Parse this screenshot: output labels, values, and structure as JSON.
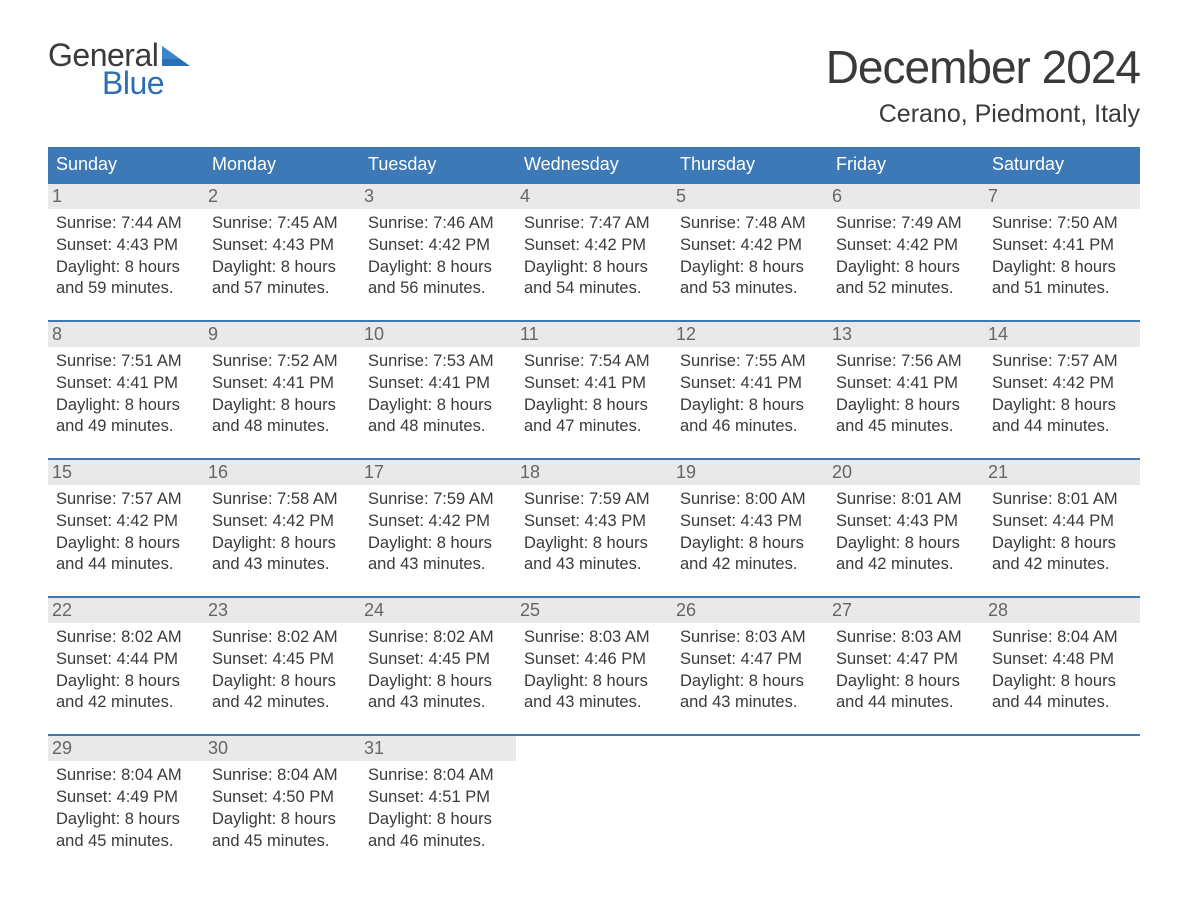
{
  "logo": {
    "text_top": "General",
    "text_bottom": "Blue",
    "color_top": "#3a3a3a",
    "color_bottom": "#2d6fb5"
  },
  "title": "December 2024",
  "location": "Cerano, Piedmont, Italy",
  "colors": {
    "header_bg": "#3c79b6",
    "header_text": "#ffffff",
    "daynum_bg": "#e9e9e9",
    "daynum_text": "#666666",
    "body_text": "#3a3a3a",
    "week_border": "#3c79b6",
    "background": "#ffffff"
  },
  "typography": {
    "title_fontsize": 46,
    "location_fontsize": 25,
    "weekday_fontsize": 18,
    "daynum_fontsize": 18,
    "body_fontsize": 16.5,
    "font_family": "Arial, Helvetica, sans-serif"
  },
  "weekdays": [
    "Sunday",
    "Monday",
    "Tuesday",
    "Wednesday",
    "Thursday",
    "Friday",
    "Saturday"
  ],
  "weeks": [
    [
      {
        "n": "1",
        "sunrise": "Sunrise: 7:44 AM",
        "sunset": "Sunset: 4:43 PM",
        "d1": "Daylight: 8 hours",
        "d2": "and 59 minutes."
      },
      {
        "n": "2",
        "sunrise": "Sunrise: 7:45 AM",
        "sunset": "Sunset: 4:43 PM",
        "d1": "Daylight: 8 hours",
        "d2": "and 57 minutes."
      },
      {
        "n": "3",
        "sunrise": "Sunrise: 7:46 AM",
        "sunset": "Sunset: 4:42 PM",
        "d1": "Daylight: 8 hours",
        "d2": "and 56 minutes."
      },
      {
        "n": "4",
        "sunrise": "Sunrise: 7:47 AM",
        "sunset": "Sunset: 4:42 PM",
        "d1": "Daylight: 8 hours",
        "d2": "and 54 minutes."
      },
      {
        "n": "5",
        "sunrise": "Sunrise: 7:48 AM",
        "sunset": "Sunset: 4:42 PM",
        "d1": "Daylight: 8 hours",
        "d2": "and 53 minutes."
      },
      {
        "n": "6",
        "sunrise": "Sunrise: 7:49 AM",
        "sunset": "Sunset: 4:42 PM",
        "d1": "Daylight: 8 hours",
        "d2": "and 52 minutes."
      },
      {
        "n": "7",
        "sunrise": "Sunrise: 7:50 AM",
        "sunset": "Sunset: 4:41 PM",
        "d1": "Daylight: 8 hours",
        "d2": "and 51 minutes."
      }
    ],
    [
      {
        "n": "8",
        "sunrise": "Sunrise: 7:51 AM",
        "sunset": "Sunset: 4:41 PM",
        "d1": "Daylight: 8 hours",
        "d2": "and 49 minutes."
      },
      {
        "n": "9",
        "sunrise": "Sunrise: 7:52 AM",
        "sunset": "Sunset: 4:41 PM",
        "d1": "Daylight: 8 hours",
        "d2": "and 48 minutes."
      },
      {
        "n": "10",
        "sunrise": "Sunrise: 7:53 AM",
        "sunset": "Sunset: 4:41 PM",
        "d1": "Daylight: 8 hours",
        "d2": "and 48 minutes."
      },
      {
        "n": "11",
        "sunrise": "Sunrise: 7:54 AM",
        "sunset": "Sunset: 4:41 PM",
        "d1": "Daylight: 8 hours",
        "d2": "and 47 minutes."
      },
      {
        "n": "12",
        "sunrise": "Sunrise: 7:55 AM",
        "sunset": "Sunset: 4:41 PM",
        "d1": "Daylight: 8 hours",
        "d2": "and 46 minutes."
      },
      {
        "n": "13",
        "sunrise": "Sunrise: 7:56 AM",
        "sunset": "Sunset: 4:41 PM",
        "d1": "Daylight: 8 hours",
        "d2": "and 45 minutes."
      },
      {
        "n": "14",
        "sunrise": "Sunrise: 7:57 AM",
        "sunset": "Sunset: 4:42 PM",
        "d1": "Daylight: 8 hours",
        "d2": "and 44 minutes."
      }
    ],
    [
      {
        "n": "15",
        "sunrise": "Sunrise: 7:57 AM",
        "sunset": "Sunset: 4:42 PM",
        "d1": "Daylight: 8 hours",
        "d2": "and 44 minutes."
      },
      {
        "n": "16",
        "sunrise": "Sunrise: 7:58 AM",
        "sunset": "Sunset: 4:42 PM",
        "d1": "Daylight: 8 hours",
        "d2": "and 43 minutes."
      },
      {
        "n": "17",
        "sunrise": "Sunrise: 7:59 AM",
        "sunset": "Sunset: 4:42 PM",
        "d1": "Daylight: 8 hours",
        "d2": "and 43 minutes."
      },
      {
        "n": "18",
        "sunrise": "Sunrise: 7:59 AM",
        "sunset": "Sunset: 4:43 PM",
        "d1": "Daylight: 8 hours",
        "d2": "and 43 minutes."
      },
      {
        "n": "19",
        "sunrise": "Sunrise: 8:00 AM",
        "sunset": "Sunset: 4:43 PM",
        "d1": "Daylight: 8 hours",
        "d2": "and 42 minutes."
      },
      {
        "n": "20",
        "sunrise": "Sunrise: 8:01 AM",
        "sunset": "Sunset: 4:43 PM",
        "d1": "Daylight: 8 hours",
        "d2": "and 42 minutes."
      },
      {
        "n": "21",
        "sunrise": "Sunrise: 8:01 AM",
        "sunset": "Sunset: 4:44 PM",
        "d1": "Daylight: 8 hours",
        "d2": "and 42 minutes."
      }
    ],
    [
      {
        "n": "22",
        "sunrise": "Sunrise: 8:02 AM",
        "sunset": "Sunset: 4:44 PM",
        "d1": "Daylight: 8 hours",
        "d2": "and 42 minutes."
      },
      {
        "n": "23",
        "sunrise": "Sunrise: 8:02 AM",
        "sunset": "Sunset: 4:45 PM",
        "d1": "Daylight: 8 hours",
        "d2": "and 42 minutes."
      },
      {
        "n": "24",
        "sunrise": "Sunrise: 8:02 AM",
        "sunset": "Sunset: 4:45 PM",
        "d1": "Daylight: 8 hours",
        "d2": "and 43 minutes."
      },
      {
        "n": "25",
        "sunrise": "Sunrise: 8:03 AM",
        "sunset": "Sunset: 4:46 PM",
        "d1": "Daylight: 8 hours",
        "d2": "and 43 minutes."
      },
      {
        "n": "26",
        "sunrise": "Sunrise: 8:03 AM",
        "sunset": "Sunset: 4:47 PM",
        "d1": "Daylight: 8 hours",
        "d2": "and 43 minutes."
      },
      {
        "n": "27",
        "sunrise": "Sunrise: 8:03 AM",
        "sunset": "Sunset: 4:47 PM",
        "d1": "Daylight: 8 hours",
        "d2": "and 44 minutes."
      },
      {
        "n": "28",
        "sunrise": "Sunrise: 8:04 AM",
        "sunset": "Sunset: 4:48 PM",
        "d1": "Daylight: 8 hours",
        "d2": "and 44 minutes."
      }
    ],
    [
      {
        "n": "29",
        "sunrise": "Sunrise: 8:04 AM",
        "sunset": "Sunset: 4:49 PM",
        "d1": "Daylight: 8 hours",
        "d2": "and 45 minutes."
      },
      {
        "n": "30",
        "sunrise": "Sunrise: 8:04 AM",
        "sunset": "Sunset: 4:50 PM",
        "d1": "Daylight: 8 hours",
        "d2": "and 45 minutes."
      },
      {
        "n": "31",
        "sunrise": "Sunrise: 8:04 AM",
        "sunset": "Sunset: 4:51 PM",
        "d1": "Daylight: 8 hours",
        "d2": "and 46 minutes."
      },
      null,
      null,
      null,
      null
    ]
  ]
}
